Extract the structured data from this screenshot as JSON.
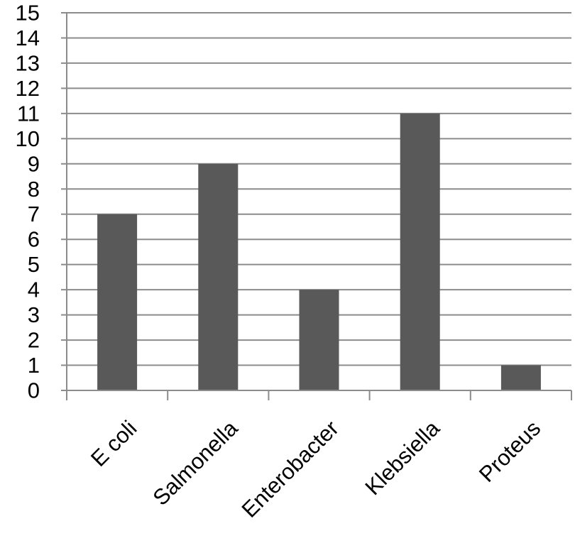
{
  "chart_data": {
    "type": "bar",
    "title": "",
    "xlabel": "",
    "ylabel": "",
    "categories": [
      "E coli",
      "Salmonella",
      "Enterobacter",
      "Klebsiella",
      "Proteus"
    ],
    "values": [
      7,
      9,
      4,
      11,
      1
    ],
    "ylim": [
      0,
      15
    ],
    "yticks": [
      "0",
      "1",
      "2",
      "3",
      "4",
      "5",
      "6",
      "7",
      "8",
      "9",
      "10",
      "11",
      "12",
      "13",
      "14",
      "15"
    ],
    "grid": true,
    "legend": "none",
    "bar_color": "#595959",
    "grid_color": "#8c8c8c",
    "axis_color": "#8c8c8c"
  }
}
